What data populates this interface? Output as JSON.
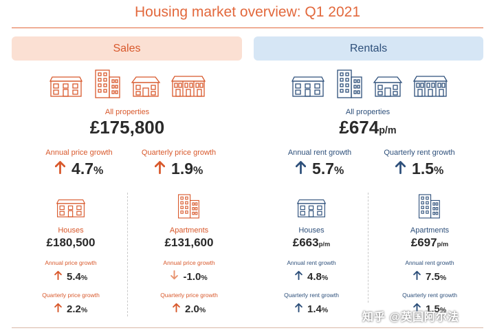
{
  "title": "Housing market overview: Q1 2021",
  "colors": {
    "sales_accent": "#d8582b",
    "rentals_accent": "#2d4f7a",
    "sales_banner": "#fbe0d3",
    "rentals_banner": "#d6e6f5"
  },
  "sales": {
    "banner": "Sales",
    "all_label": "All properties",
    "all_value": "£175,800",
    "annual_label": "Annual price growth",
    "annual_value": "4.7",
    "annual_arrow": "up",
    "quarterly_label": "Quarterly price growth",
    "quarterly_value": "1.9",
    "quarterly_arrow": "up",
    "houses": {
      "label": "Houses",
      "value": "£180,500",
      "annual_label": "Annual price growth",
      "annual_value": "5.4",
      "annual_arrow": "up",
      "quarterly_label": "Quarterly price growth",
      "quarterly_value": "2.2",
      "quarterly_arrow": "up"
    },
    "apartments": {
      "label": "Apartments",
      "value": "£131,600",
      "annual_label": "Annual price growth",
      "annual_value": "-1.0",
      "annual_arrow": "down",
      "quarterly_label": "Quarterly price growth",
      "quarterly_value": "2.0",
      "quarterly_arrow": "up"
    }
  },
  "rentals": {
    "banner": "Rentals",
    "all_label": "All properties",
    "all_value": "£674",
    "unit": "p/m",
    "annual_label": "Annual rent growth",
    "annual_value": "5.7",
    "annual_arrow": "up",
    "quarterly_label": "Quarterly rent growth",
    "quarterly_value": "1.5",
    "quarterly_arrow": "up",
    "houses": {
      "label": "Houses",
      "value": "£663",
      "unit": "p/m",
      "annual_label": "Annual rent growth",
      "annual_value": "4.8",
      "annual_arrow": "up",
      "quarterly_label": "Quarterly rent growth",
      "quarterly_value": "1.4",
      "quarterly_arrow": "up"
    },
    "apartments": {
      "label": "Apartments",
      "value": "£697",
      "unit": "p/m",
      "annual_label": "Annual rent growth",
      "annual_value": "7.5",
      "annual_arrow": "up",
      "quarterly_label": "Quarterly rent growth",
      "quarterly_value": "1.5",
      "quarterly_arrow": "up"
    }
  },
  "percent_sign": "%",
  "icons": [
    "house-icon",
    "apartment-block-icon",
    "detached-house-icon",
    "terraced-house-icon"
  ],
  "watermark": "知乎 @英国阿尔法"
}
